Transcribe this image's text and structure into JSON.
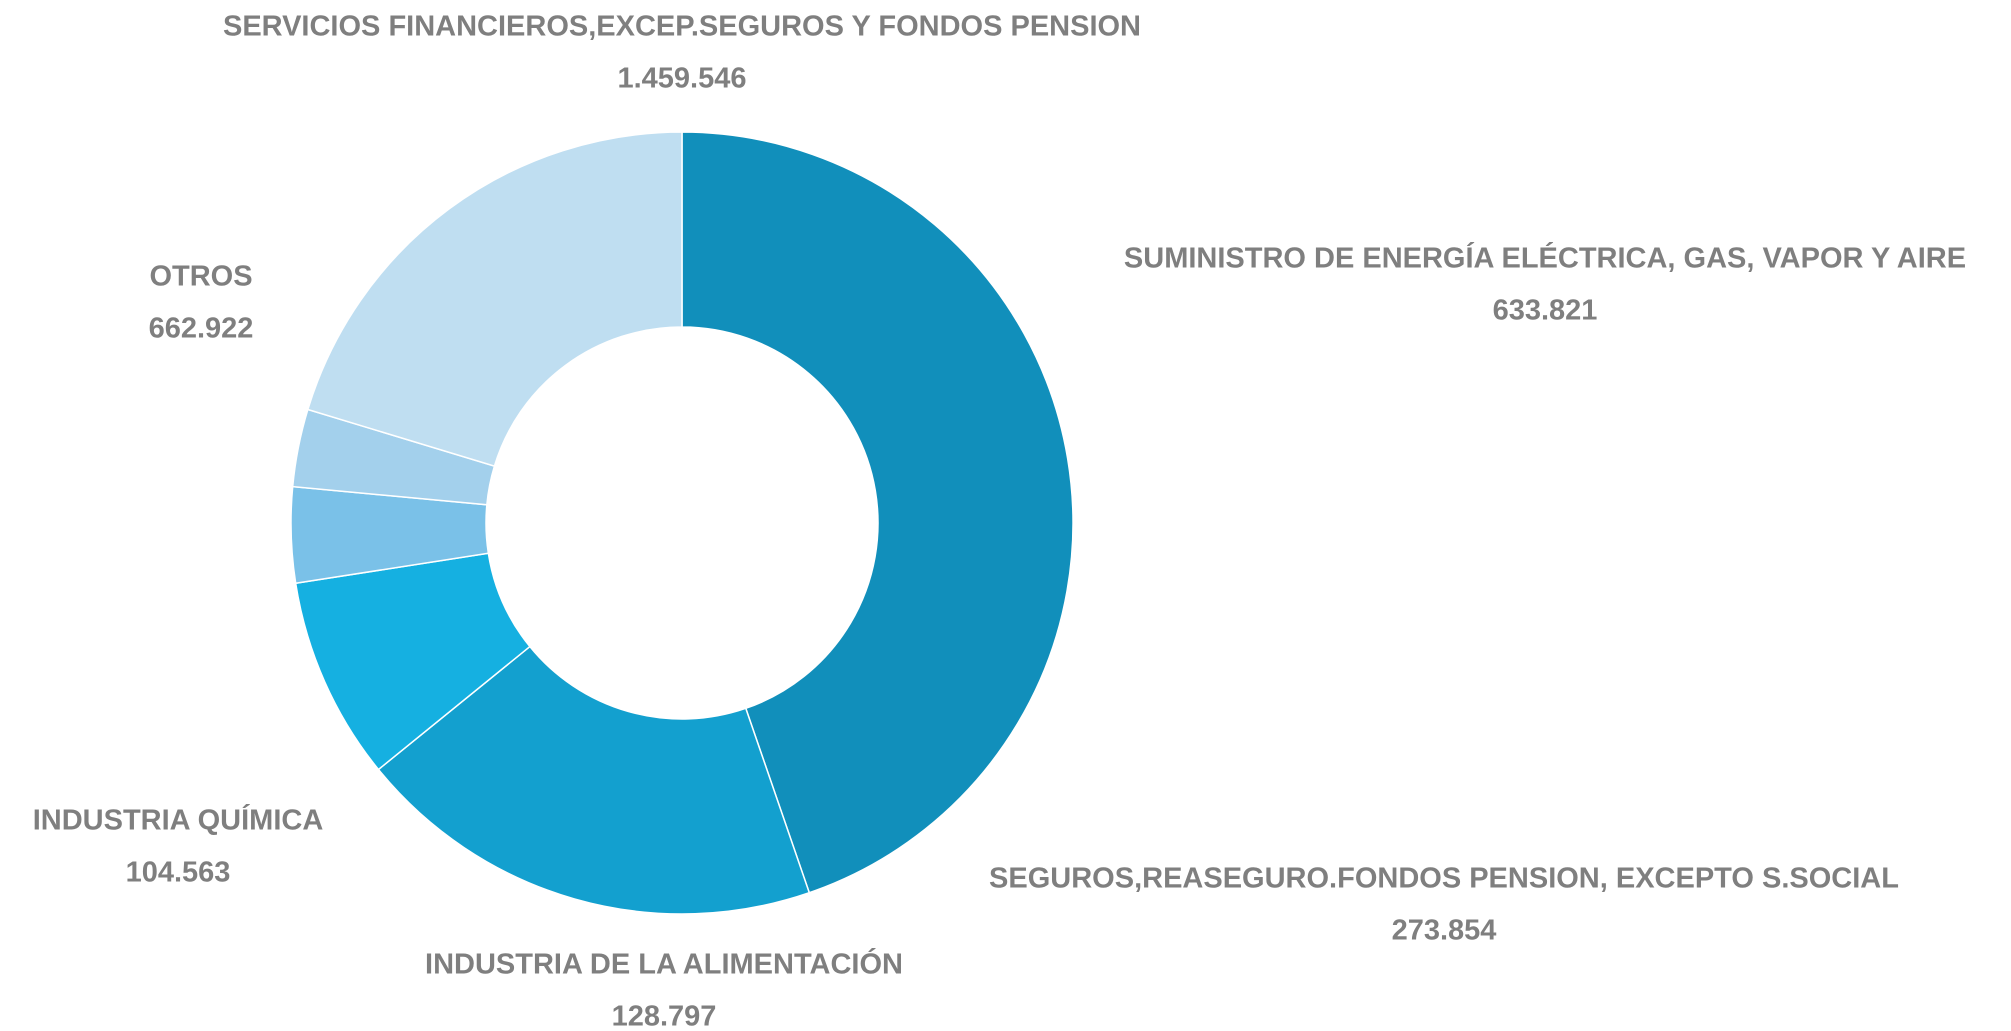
{
  "chart_data": {
    "type": "donut",
    "categories": [
      "SERVICIOS FINANCIEROS,EXCEP.SEGUROS Y FONDOS PENSION",
      "SUMINISTRO DE ENERGÍA ELÉCTRICA, GAS, VAPOR Y AIRE",
      "SEGUROS,REASEGURO.FONDOS PENSION, EXCEPTO S.SOCIAL",
      "INDUSTRIA DE LA ALIMENTACIÓN",
      "INDUSTRIA QUÍMICA",
      "OTROS"
    ],
    "values": [
      1459546,
      633821,
      273854,
      128797,
      104563,
      662922
    ],
    "value_labels": [
      "1.459.546",
      "633.821",
      "273.854",
      "128.797",
      "104.563",
      "662.922"
    ],
    "colors": [
      "#118fbb",
      "#13a0cf",
      "#15b0e1",
      "#7ac1e8",
      "#a3d0ec",
      "#bfdef1"
    ]
  }
}
